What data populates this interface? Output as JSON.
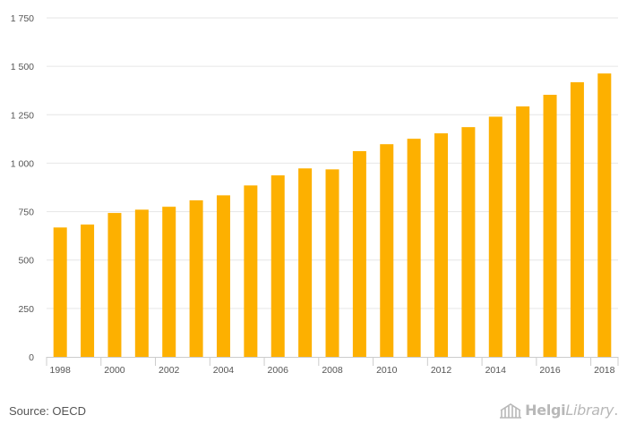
{
  "colors": {
    "bar": "#FDB000",
    "grid": "#E6E6E6",
    "axis": "#CCCCCC",
    "text": "#555555"
  },
  "source": "Source: OECD",
  "logo": {
    "icon": "library-building-icon",
    "part1": "Helgi",
    "part2": "Library",
    "suffix": "."
  },
  "chart_data": {
    "type": "bar",
    "title": "",
    "xlabel": "",
    "ylabel": "",
    "categories": [
      "1998",
      "1999",
      "2000",
      "2001",
      "2002",
      "2003",
      "2004",
      "2005",
      "2006",
      "2007",
      "2008",
      "2009",
      "2010",
      "2011",
      "2012",
      "2013",
      "2014",
      "2015",
      "2016",
      "2017",
      "2018"
    ],
    "x_tick_labels": [
      "1998",
      "2000",
      "2002",
      "2004",
      "2006",
      "2008",
      "2010",
      "2012",
      "2014",
      "2016",
      "2018"
    ],
    "values": [
      668,
      683,
      743,
      760,
      775,
      808,
      834,
      885,
      937,
      973,
      968,
      1062,
      1098,
      1126,
      1154,
      1186,
      1240,
      1293,
      1353,
      1418,
      1463
    ],
    "ylim": [
      0,
      1750
    ],
    "y_ticks": [
      0,
      250,
      500,
      750,
      1000,
      1250,
      1500,
      1750
    ],
    "y_tick_labels": [
      "0",
      "250",
      "500",
      "750",
      "1 000",
      "1 250",
      "1 500",
      "1 750"
    ],
    "grid": true,
    "legend": "none"
  }
}
